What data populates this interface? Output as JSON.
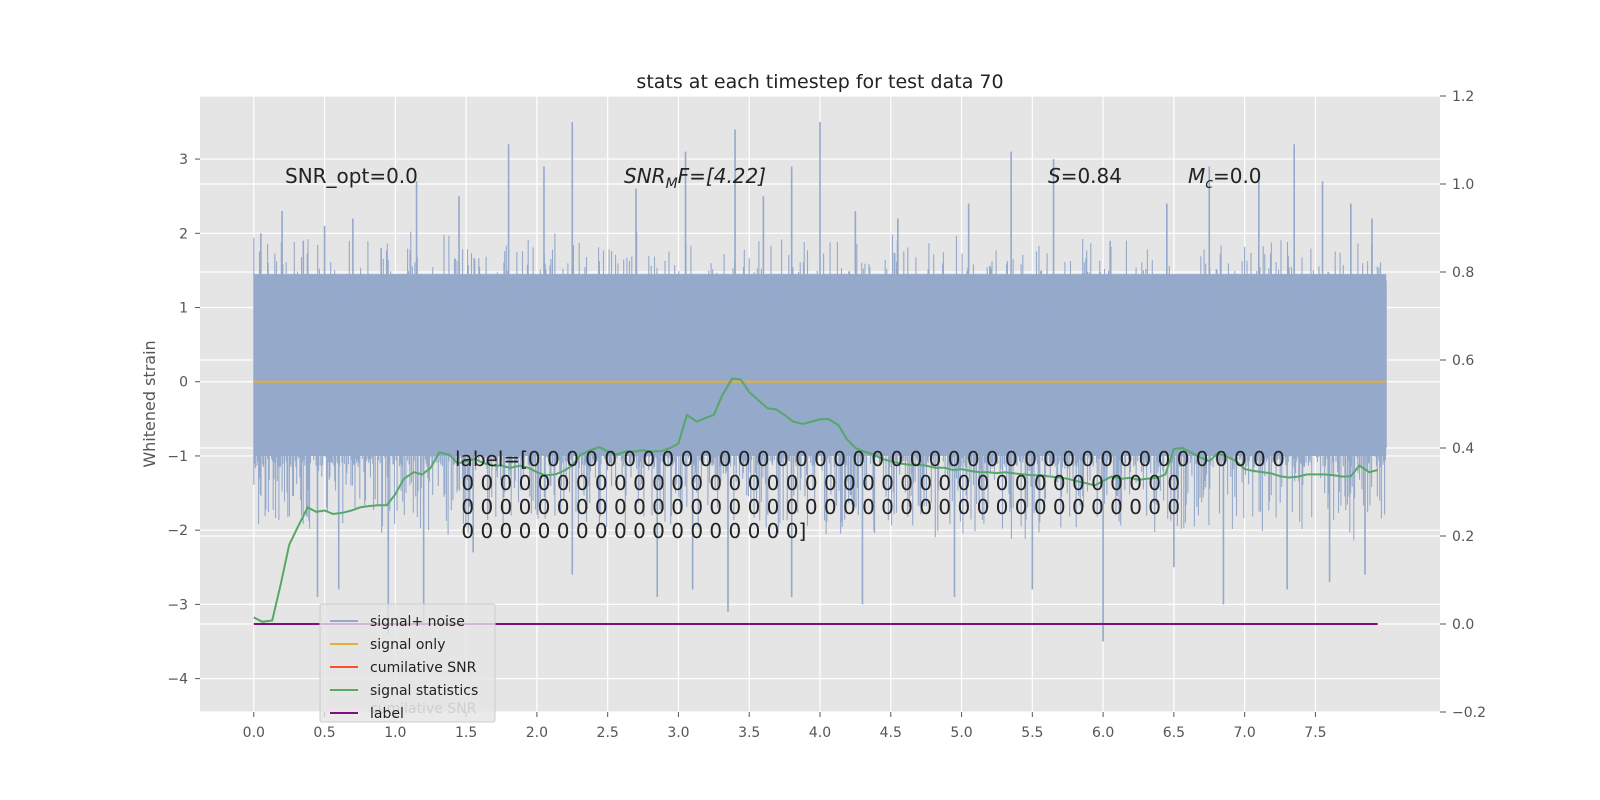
{
  "chart_data": {
    "type": "line",
    "title": "stats at each timestep for test data 70",
    "ylabel": "Whitened strain",
    "xlabel": "",
    "xlim": [
      -0.38,
      8.38
    ],
    "ylim": [
      -4.45,
      3.85
    ],
    "y2lim": [
      -0.2,
      1.2
    ],
    "grid": true,
    "x_ticks": [
      "0.0",
      "0.5",
      "1.0",
      "1.5",
      "2.0",
      "2.5",
      "3.0",
      "3.5",
      "4.0",
      "4.5",
      "5.0",
      "5.5",
      "6.0",
      "6.5",
      "7.0",
      "7.5"
    ],
    "y_ticks": [
      "3",
      "2",
      "1",
      "0",
      "−1",
      "−2",
      "−3",
      "−4"
    ],
    "y2_ticks": [
      "1.2",
      "1.0",
      "0.8",
      "0.6",
      "0.4",
      "0.2",
      "0.0",
      "−0.2"
    ],
    "annotations": {
      "snr_opt": "SNR_opt=0.0",
      "snr_mf_sym": "SNR",
      "snr_mf_sub": "M",
      "snr_mf_rest": "F=[4.22]",
      "s_sym": "S",
      "s_rest": "=0.84",
      "mc_sym": "M",
      "mc_sub": "c",
      "mc_rest": "=0.0",
      "label_lines": [
        "label=[0 0 0 0 0 0 0 0 0 0 0 0 0 0 0 0 0 0 0 0 0 0 0 0 0 0 0 0 0 0 0 0 0 0 0 0 0 0 0 0",
        " 0 0 0 0 0 0 0 0 0 0 0 0 0 0 0 0 0 0 0 0 0 0 0 0 0 0 0 0 0 0 0 0 0 0 0 0 0 0",
        " 0 0 0 0 0 0 0 0 0 0 0 0 0 0 0 0 0 0 0 0 0 0 0 0 0 0 0 0 0 0 0 0 0 0 0 0 0 0",
        " 0 0 0 0 0 0 0 0 0 0 0 0 0 0 0 0 0 0]"
      ]
    },
    "legend": {
      "placement": "lower-left",
      "entries": [
        "signal+ noise",
        "signal only",
        "cumilative SNR",
        "signal statistics",
        "label"
      ],
      "hidden_text": "cumilative SNR"
    },
    "series": [
      {
        "name": "signal+ noise",
        "axis": "left",
        "color": "#95a9cb",
        "kind": "noise",
        "x_range": [
          0.0,
          8.0
        ],
        "clip": [
          -1.0,
          1.45
        ],
        "spikes": [
          [
            0.05,
            2.0
          ],
          [
            0.1,
            1.6
          ],
          [
            0.2,
            2.3
          ],
          [
            0.35,
            1.9
          ],
          [
            0.5,
            2.1
          ],
          [
            0.7,
            2.2
          ],
          [
            0.9,
            1.8
          ],
          [
            1.15,
            2.7
          ],
          [
            1.45,
            2.5
          ],
          [
            1.8,
            3.2
          ],
          [
            2.05,
            2.9
          ],
          [
            2.25,
            3.5
          ],
          [
            2.7,
            2.6
          ],
          [
            3.05,
            3.1
          ],
          [
            3.4,
            3.4
          ],
          [
            3.6,
            2.5
          ],
          [
            3.8,
            2.9
          ],
          [
            4.0,
            3.5
          ],
          [
            4.25,
            2.3
          ],
          [
            4.55,
            2.2
          ],
          [
            5.05,
            2.4
          ],
          [
            5.35,
            3.1
          ],
          [
            5.65,
            3.0
          ],
          [
            6.05,
            1.9
          ],
          [
            6.45,
            2.4
          ],
          [
            6.75,
            2.9
          ],
          [
            7.1,
            2.8
          ],
          [
            7.35,
            3.2
          ],
          [
            7.55,
            2.7
          ],
          [
            7.75,
            2.4
          ],
          [
            7.9,
            2.2
          ],
          [
            0.05,
            -1.0
          ],
          [
            0.45,
            -2.9
          ],
          [
            0.6,
            -2.8
          ],
          [
            0.95,
            -3.4
          ],
          [
            1.2,
            -3.3
          ],
          [
            1.55,
            -2.3
          ],
          [
            2.25,
            -2.6
          ],
          [
            2.85,
            -2.9
          ],
          [
            3.1,
            -2.8
          ],
          [
            3.35,
            -3.1
          ],
          [
            3.8,
            -2.9
          ],
          [
            4.3,
            -3.0
          ],
          [
            4.95,
            -2.9
          ],
          [
            5.5,
            -2.8
          ],
          [
            6.0,
            -3.5
          ],
          [
            6.5,
            -2.5
          ],
          [
            6.85,
            -3.0
          ],
          [
            7.3,
            -2.8
          ],
          [
            7.6,
            -2.7
          ],
          [
            7.85,
            -2.6
          ]
        ]
      },
      {
        "name": "signal only",
        "axis": "left",
        "color": "#e5ae38",
        "x": [
          0.0,
          8.0
        ],
        "y": [
          0.0,
          0.0
        ]
      },
      {
        "name": "cumilative SNR",
        "axis": "right",
        "color": "#fc4f30",
        "x": [],
        "y": []
      },
      {
        "name": "signal statistics",
        "axis": "right",
        "color": "#55a868",
        "x": [
          0.0,
          0.06,
          0.13,
          0.19,
          0.25,
          0.31,
          0.38,
          0.44,
          0.5,
          0.56,
          0.63,
          0.69,
          0.75,
          0.81,
          0.88,
          0.94,
          1.0,
          1.06,
          1.13,
          1.19,
          1.25,
          1.31,
          1.38,
          1.44,
          1.5,
          1.56,
          1.63,
          1.69,
          1.75,
          1.81,
          1.88,
          1.94,
          2.0,
          2.06,
          2.13,
          2.19,
          2.25,
          2.31,
          2.38,
          2.44,
          2.5,
          2.56,
          2.63,
          2.69,
          2.75,
          2.81,
          2.88,
          2.94,
          3.0,
          3.06,
          3.13,
          3.19,
          3.25,
          3.31,
          3.38,
          3.44,
          3.5,
          3.56,
          3.63,
          3.69,
          3.75,
          3.81,
          3.88,
          3.94,
          4.0,
          4.06,
          4.13,
          4.19,
          4.25,
          4.31,
          4.38,
          4.44,
          4.5,
          4.56,
          4.63,
          4.69,
          4.75,
          4.81,
          4.88,
          4.94,
          5.0,
          5.06,
          5.13,
          5.19,
          5.25,
          5.31,
          5.38,
          5.44,
          5.5,
          5.56,
          5.63,
          5.69,
          5.75,
          5.81,
          5.88,
          5.94,
          6.0,
          6.06,
          6.13,
          6.19,
          6.25,
          6.31,
          6.38,
          6.44,
          6.5,
          6.56,
          6.63,
          6.69,
          6.75,
          6.81,
          6.88,
          6.94,
          7.0,
          7.06,
          7.13,
          7.19,
          7.25,
          7.31,
          7.38,
          7.44,
          7.5,
          7.56,
          7.63,
          7.69,
          7.75,
          7.81,
          7.88,
          7.94
        ],
        "y": [
          0.015,
          0.005,
          0.008,
          0.09,
          0.18,
          0.22,
          0.265,
          0.255,
          0.258,
          0.25,
          0.253,
          0.258,
          0.265,
          0.268,
          0.27,
          0.27,
          0.295,
          0.33,
          0.345,
          0.34,
          0.355,
          0.39,
          0.385,
          0.365,
          0.37,
          0.375,
          0.365,
          0.36,
          0.36,
          0.355,
          0.36,
          0.355,
          0.345,
          0.338,
          0.34,
          0.348,
          0.36,
          0.385,
          0.395,
          0.402,
          0.392,
          0.385,
          0.392,
          0.392,
          0.395,
          0.392,
          0.393,
          0.4,
          0.41,
          0.475,
          0.46,
          0.468,
          0.475,
          0.52,
          0.558,
          0.556,
          0.527,
          0.51,
          0.49,
          0.488,
          0.475,
          0.46,
          0.455,
          0.46,
          0.465,
          0.466,
          0.452,
          0.42,
          0.4,
          0.392,
          0.385,
          0.375,
          0.37,
          0.365,
          0.362,
          0.362,
          0.36,
          0.355,
          0.355,
          0.35,
          0.352,
          0.348,
          0.345,
          0.345,
          0.343,
          0.345,
          0.342,
          0.34,
          0.338,
          0.338,
          0.335,
          0.333,
          0.33,
          0.325,
          0.32,
          0.315,
          0.325,
          0.335,
          0.33,
          0.332,
          0.328,
          0.33,
          0.332,
          0.34,
          0.398,
          0.4,
          0.388,
          0.378,
          0.37,
          0.388,
          0.38,
          0.37,
          0.352,
          0.348,
          0.345,
          0.342,
          0.336,
          0.333,
          0.335,
          0.34,
          0.34,
          0.34,
          0.338,
          0.335,
          0.336,
          0.36,
          0.345,
          0.35
        ]
      },
      {
        "name": "label",
        "axis": "right",
        "color": "#810f7c",
        "x": [
          0.0,
          7.94
        ],
        "y": [
          0.0,
          0.0
        ]
      }
    ]
  }
}
